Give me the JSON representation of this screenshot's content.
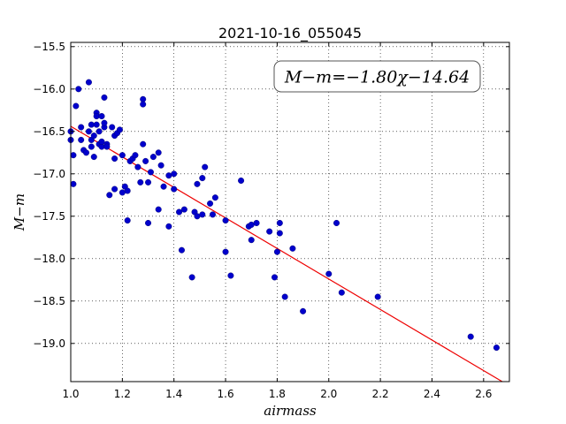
{
  "chart_data": {
    "type": "scatter",
    "title": "2021-10-16_055045",
    "xlabel": "airmass",
    "ylabel": "M−m",
    "xlim": [
      1.0,
      2.7
    ],
    "ylim": [
      -19.45,
      -15.45
    ],
    "x_ticks": [
      "1.0",
      "1.2",
      "1.4",
      "1.6",
      "1.8",
      "2.0",
      "2.2",
      "2.4",
      "2.6"
    ],
    "y_ticks": [
      "−15.5",
      "−16.0",
      "−16.5",
      "−17.0",
      "−17.5",
      "−18.0",
      "−18.5",
      "−19.0"
    ],
    "grid": true,
    "annotation": "M−m=−1.80χ−14.64",
    "fit": {
      "slope": -1.8,
      "intercept": -14.64,
      "color": "#ee0000"
    },
    "point_color": "#0000cc",
    "points": [
      [
        1.0,
        -16.5
      ],
      [
        1.0,
        -16.6
      ],
      [
        1.01,
        -16.78
      ],
      [
        1.01,
        -17.12
      ],
      [
        1.02,
        -16.2
      ],
      [
        1.03,
        -16.0
      ],
      [
        1.04,
        -16.45
      ],
      [
        1.04,
        -16.6
      ],
      [
        1.05,
        -16.72
      ],
      [
        1.06,
        -16.75
      ],
      [
        1.07,
        -16.5
      ],
      [
        1.07,
        -15.92
      ],
      [
        1.08,
        -16.42
      ],
      [
        1.08,
        -16.6
      ],
      [
        1.08,
        -16.68
      ],
      [
        1.09,
        -16.8
      ],
      [
        1.09,
        -16.55
      ],
      [
        1.1,
        -16.28
      ],
      [
        1.1,
        -16.32
      ],
      [
        1.1,
        -16.42
      ],
      [
        1.11,
        -16.5
      ],
      [
        1.11,
        -16.65
      ],
      [
        1.12,
        -16.68
      ],
      [
        1.12,
        -16.62
      ],
      [
        1.12,
        -16.32
      ],
      [
        1.13,
        -16.1
      ],
      [
        1.13,
        -16.45
      ],
      [
        1.13,
        -16.4
      ],
      [
        1.14,
        -16.65
      ],
      [
        1.14,
        -16.68
      ],
      [
        1.15,
        -17.25
      ],
      [
        1.16,
        -16.45
      ],
      [
        1.17,
        -17.18
      ],
      [
        1.17,
        -16.82
      ],
      [
        1.17,
        -16.55
      ],
      [
        1.18,
        -16.52
      ],
      [
        1.19,
        -16.48
      ],
      [
        1.2,
        -17.22
      ],
      [
        1.2,
        -16.78
      ],
      [
        1.21,
        -17.15
      ],
      [
        1.22,
        -17.2
      ],
      [
        1.22,
        -17.55
      ],
      [
        1.23,
        -16.85
      ],
      [
        1.24,
        -16.82
      ],
      [
        1.25,
        -16.78
      ],
      [
        1.26,
        -16.92
      ],
      [
        1.27,
        -17.1
      ],
      [
        1.28,
        -16.65
      ],
      [
        1.28,
        -16.12
      ],
      [
        1.28,
        -16.18
      ],
      [
        1.29,
        -16.85
      ],
      [
        1.3,
        -17.1
      ],
      [
        1.3,
        -17.58
      ],
      [
        1.31,
        -16.98
      ],
      [
        1.32,
        -16.8
      ],
      [
        1.34,
        -16.75
      ],
      [
        1.34,
        -17.42
      ],
      [
        1.35,
        -16.9
      ],
      [
        1.36,
        -17.15
      ],
      [
        1.38,
        -17.02
      ],
      [
        1.38,
        -17.62
      ],
      [
        1.4,
        -17.0
      ],
      [
        1.4,
        -17.18
      ],
      [
        1.42,
        -17.45
      ],
      [
        1.43,
        -17.9
      ],
      [
        1.44,
        -17.42
      ],
      [
        1.47,
        -18.22
      ],
      [
        1.48,
        -17.45
      ],
      [
        1.49,
        -17.12
      ],
      [
        1.49,
        -17.5
      ],
      [
        1.51,
        -17.05
      ],
      [
        1.51,
        -17.48
      ],
      [
        1.52,
        -16.92
      ],
      [
        1.54,
        -17.35
      ],
      [
        1.55,
        -17.48
      ],
      [
        1.56,
        -17.28
      ],
      [
        1.6,
        -17.55
      ],
      [
        1.6,
        -17.92
      ],
      [
        1.62,
        -18.2
      ],
      [
        1.66,
        -17.08
      ],
      [
        1.69,
        -17.62
      ],
      [
        1.7,
        -17.78
      ],
      [
        1.7,
        -17.6
      ],
      [
        1.72,
        -17.58
      ],
      [
        1.77,
        -17.68
      ],
      [
        1.79,
        -18.22
      ],
      [
        1.8,
        -17.92
      ],
      [
        1.81,
        -17.58
      ],
      [
        1.81,
        -17.7
      ],
      [
        1.83,
        -18.45
      ],
      [
        1.86,
        -17.88
      ],
      [
        1.9,
        -18.62
      ],
      [
        2.0,
        -18.18
      ],
      [
        2.03,
        -17.58
      ],
      [
        2.05,
        -18.4
      ],
      [
        2.19,
        -18.45
      ],
      [
        2.55,
        -18.92
      ],
      [
        2.65,
        -19.05
      ]
    ]
  }
}
